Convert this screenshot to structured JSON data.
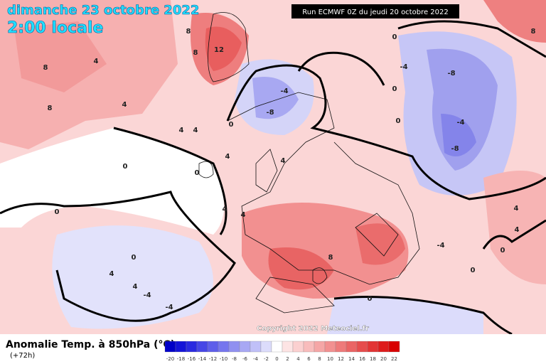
{
  "header": {
    "date": "dimanche 23 octobre 2022",
    "time": "2:00 locale",
    "run": "Run ECMWF 0Z du jeudi 20 octobre 2022"
  },
  "copyright": "Copyright 2022 Meteociel.fr",
  "legend": {
    "title": "Anomalie Temp. à 850hPa (°C)",
    "lead": "(+72h)",
    "ticks": [
      -20,
      -18,
      -16,
      -14,
      -12,
      -10,
      -8,
      -6,
      -4,
      -2,
      0,
      2,
      4,
      6,
      8,
      10,
      12,
      14,
      16,
      18,
      20,
      22
    ],
    "colors": [
      "#0000c8",
      "#1414d8",
      "#2a2ae0",
      "#4646e6",
      "#5e5eea",
      "#7676ee",
      "#9090f0",
      "#a8a8f4",
      "#c0c0f8",
      "#dcdcfb",
      "#ffffff",
      "#fde4e4",
      "#fbd0d0",
      "#f8bcbc",
      "#f5a6a6",
      "#f29090",
      "#ee7a7a",
      "#ea6464",
      "#e64c4c",
      "#e23434",
      "#de1c1c",
      "#d80000"
    ]
  },
  "contour_labels": [
    8,
    12,
    8,
    4,
    8,
    8,
    4,
    4,
    4,
    0,
    4,
    0,
    0,
    0,
    4,
    4,
    4,
    -4,
    -8,
    0,
    -4,
    -8,
    -4,
    -8,
    0,
    4,
    4,
    -4,
    0,
    0,
    4,
    4,
    -4,
    -4,
    8,
    0,
    8,
    0,
    0
  ]
}
